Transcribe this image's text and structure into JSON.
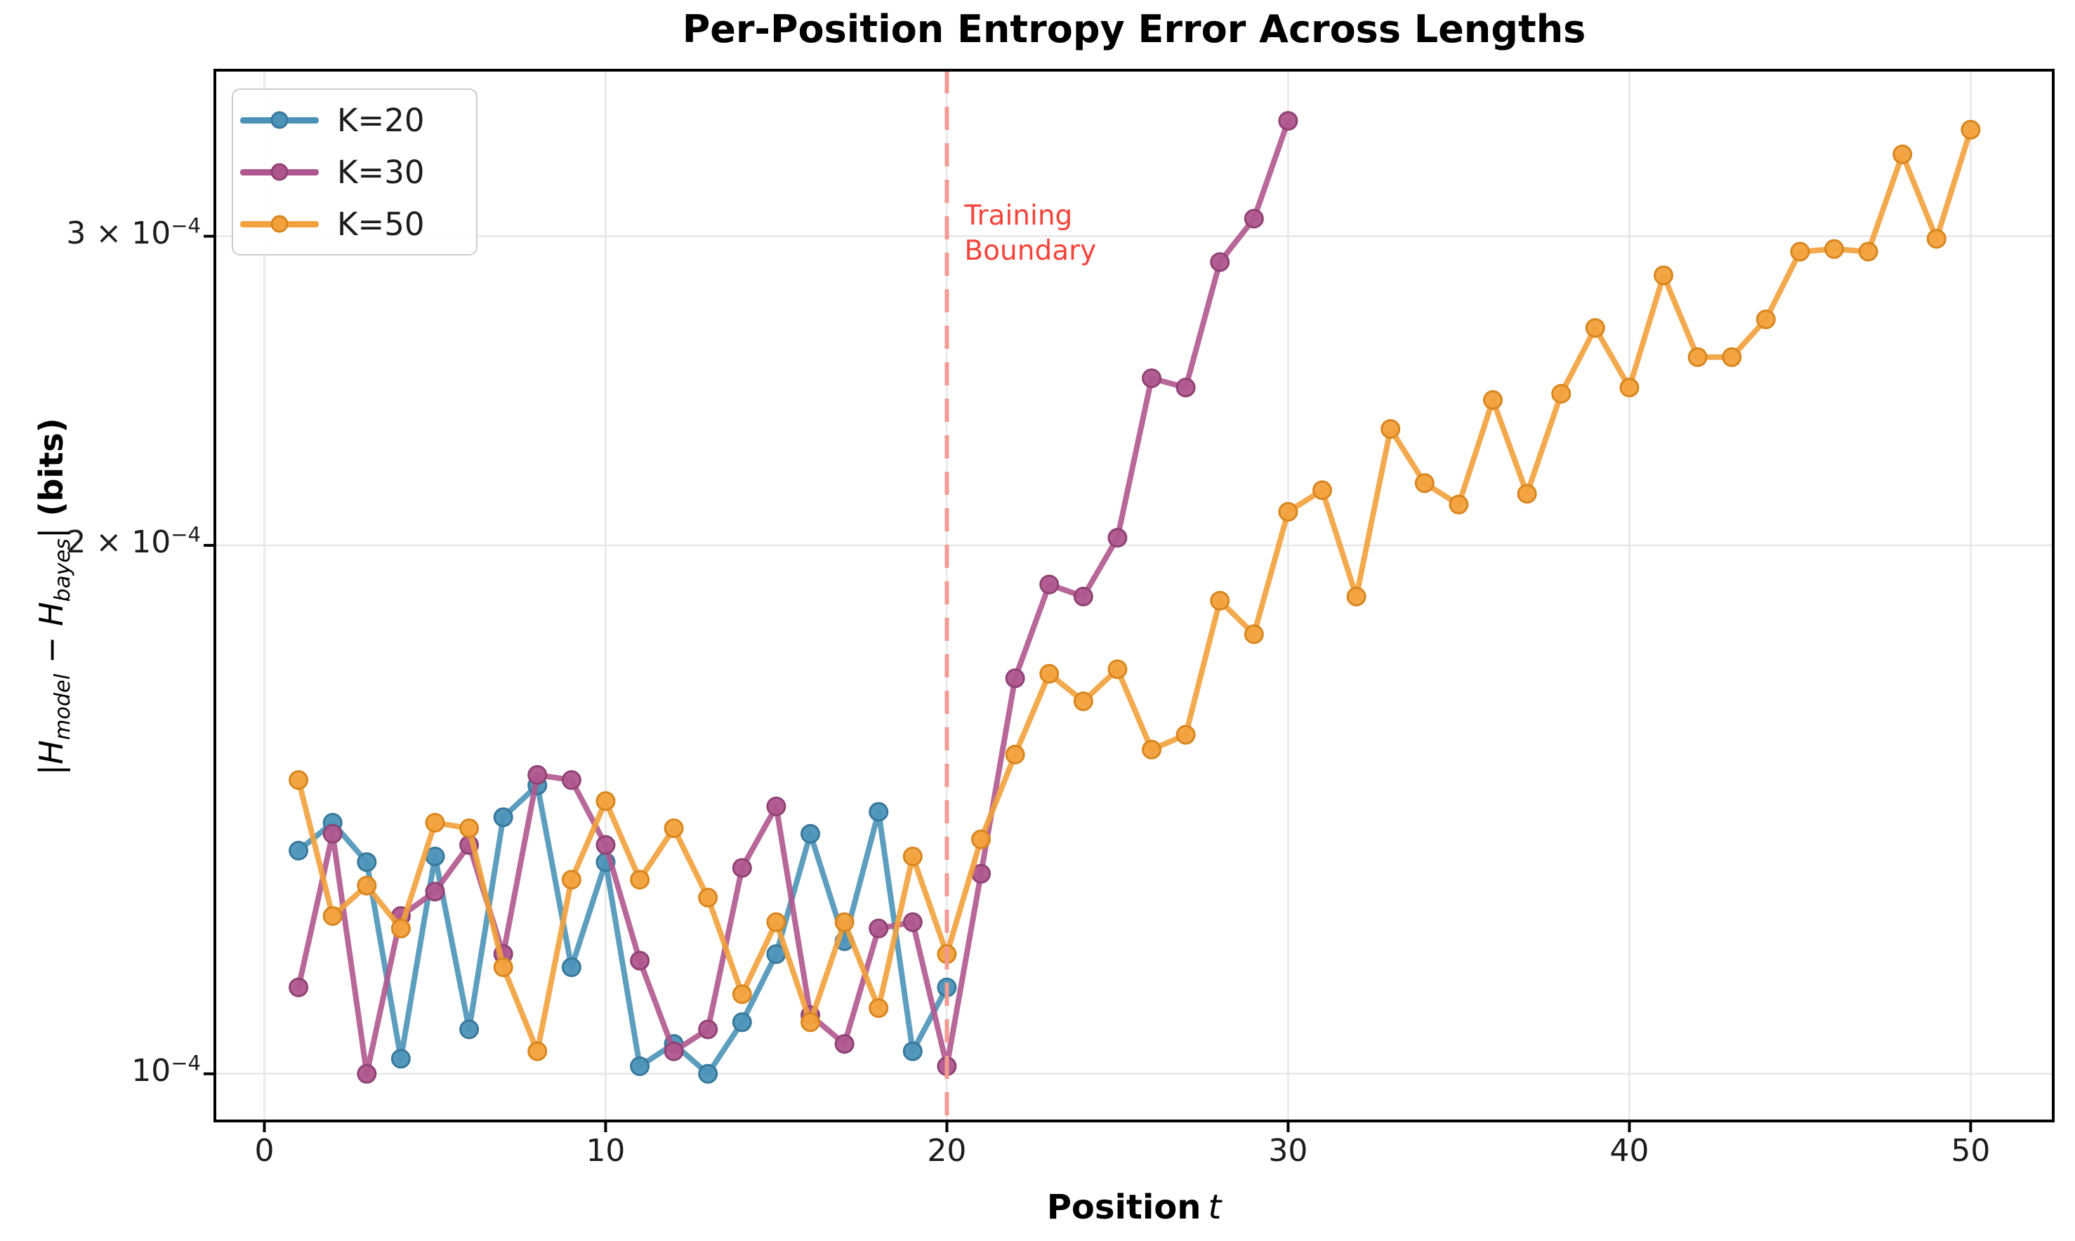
{
  "title": "Per-Position Entropy Error Across Lengths",
  "xlabel": {
    "text": "Position",
    "math_var": "t"
  },
  "ylabel": {
    "p1": "|H",
    "s1": "model",
    "p2": " − H",
    "s2": "bayes",
    "p3": "|",
    "bits": " (bits)"
  },
  "legend": {
    "items": [
      {
        "label": "K=20",
        "color": "#4B94B8",
        "edge": "#38789B"
      },
      {
        "label": "K=30",
        "color": "#B0568E",
        "edge": "#8F4374"
      },
      {
        "label": "K=50",
        "color": "#F2A13C",
        "edge": "#D8861F"
      }
    ]
  },
  "annotation": {
    "line1": "Training",
    "line2": "Boundary",
    "color": "#F4433A",
    "at_x": 20
  },
  "axis": {
    "x_tick_labels": [
      "0",
      "10",
      "20",
      "30",
      "40",
      "50"
    ],
    "x_tick_values": [
      0,
      10,
      20,
      30,
      40,
      50
    ],
    "y_ticks": [
      {
        "value": 0.0001,
        "prefix": "10",
        "exp": "−4"
      },
      {
        "value": 0.0002,
        "prefix": "2 × 10",
        "exp": "−4"
      },
      {
        "value": 0.0003,
        "prefix": "3 × 10",
        "exp": "−4"
      }
    ]
  },
  "colors": {
    "grid": "#e7e7e7",
    "spine": "#000000",
    "vline": "#F29B93",
    "annotation_text": "#F4433A",
    "background": "#ffffff"
  },
  "chart_data": {
    "type": "line",
    "title": "Per-Position Entropy Error Across Lengths",
    "xlabel": "Position t",
    "ylabel": "|H_model − H_bayes| (bits)",
    "yscale": "log",
    "grid": true,
    "legend_position": "upper left",
    "xlim": [
      -1.45,
      52.42
    ],
    "ylim": [
      9.4e-05,
      0.000373
    ],
    "x_ticks": [
      0,
      10,
      20,
      30,
      40,
      50
    ],
    "y_tick_values": [
      0.0001,
      0.0002,
      0.0003
    ],
    "vline": {
      "x": 20,
      "label": "Training Boundary",
      "style": "dashed",
      "color": "#F29B93"
    },
    "series": [
      {
        "name": "K=20",
        "color": "#4B94B8",
        "edge": "#38789B",
        "x": [
          1,
          2,
          3,
          4,
          5,
          6,
          7,
          8,
          9,
          10,
          11,
          12,
          13,
          14,
          15,
          16,
          17,
          18,
          19,
          20
        ],
        "values": [
          0.000134,
          0.000139,
          0.000132,
          0.000102,
          0.000133,
          0.000106,
          0.00014,
          0.000146,
          0.000115,
          0.000132,
          0.000101,
          0.000104,
          0.0001,
          0.000107,
          0.000117,
          0.000137,
          0.000119,
          0.000141,
          0.000103,
          0.000112
        ]
      },
      {
        "name": "K=30",
        "color": "#B0568E",
        "edge": "#8F4374",
        "x": [
          1,
          2,
          3,
          4,
          5,
          6,
          7,
          8,
          9,
          10,
          11,
          12,
          13,
          14,
          15,
          16,
          17,
          18,
          19,
          20,
          21,
          22,
          23,
          24,
          25,
          26,
          27,
          28,
          29,
          30
        ],
        "values": [
          0.000112,
          0.000137,
          0.0001,
          0.000123,
          0.000127,
          0.000135,
          0.000117,
          0.000148,
          0.000147,
          0.000135,
          0.000116,
          0.000103,
          0.000106,
          0.000131,
          0.000142,
          0.000108,
          0.000104,
          0.000121,
          0.000122,
          0.000101,
          0.00013,
          0.000168,
          0.00019,
          0.000187,
          0.000202,
          0.000249,
          0.000246,
          0.00029,
          0.000307,
          0.000349
        ]
      },
      {
        "name": "K=50",
        "color": "#F2A13C",
        "edge": "#D8861F",
        "x": [
          1,
          2,
          3,
          4,
          5,
          6,
          7,
          8,
          9,
          10,
          11,
          12,
          13,
          14,
          15,
          16,
          17,
          18,
          19,
          20,
          21,
          22,
          23,
          24,
          25,
          26,
          27,
          28,
          29,
          30,
          31,
          32,
          33,
          34,
          35,
          36,
          37,
          38,
          39,
          40,
          41,
          42,
          43,
          44,
          45,
          46,
          47,
          48,
          49,
          50
        ],
        "values": [
          0.000147,
          0.000123,
          0.000128,
          0.000121,
          0.000139,
          0.000138,
          0.000115,
          0.000103,
          0.000129,
          0.000143,
          0.000129,
          0.000138,
          0.000126,
          0.000111,
          0.000122,
          0.000107,
          0.000122,
          0.000109,
          0.000133,
          0.000117,
          0.000136,
          0.000152,
          0.000169,
          0.000163,
          0.00017,
          0.000153,
          0.000156,
          0.000186,
          0.000178,
          0.000209,
          0.000215,
          0.000187,
          0.000233,
          0.000217,
          0.000211,
          0.000242,
          0.000214,
          0.000244,
          0.000266,
          0.000246,
          0.000285,
          0.000256,
          0.000256,
          0.000269,
          0.000294,
          0.000295,
          0.000294,
          0.000334,
          0.000299,
          0.000345
        ]
      }
    ]
  }
}
